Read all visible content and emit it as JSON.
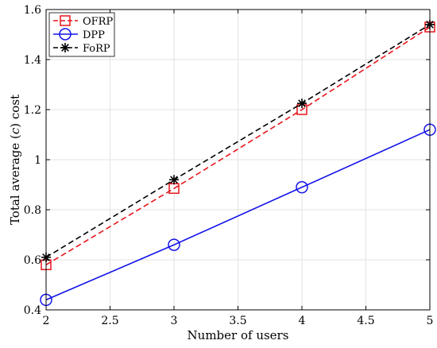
{
  "chart_data": {
    "type": "line",
    "title": "",
    "xlabel": "Number of users",
    "ylabel": "Total average ($\\bar{c}$) cost",
    "ylabel_parts": {
      "before": "Total average (",
      "symbol": "c",
      "after": ") cost"
    },
    "xlim": [
      2,
      5
    ],
    "ylim": [
      0.4,
      1.6
    ],
    "xticks": [
      2,
      2.5,
      3,
      3.5,
      4,
      4.5,
      5
    ],
    "xtick_labels": [
      "2",
      "2.5",
      "3",
      "3.5",
      "4",
      "4.5",
      "5"
    ],
    "yticks": [
      0.4,
      0.6,
      0.8,
      1.0,
      1.2,
      1.4,
      1.6
    ],
    "ytick_labels": [
      "0.4",
      "0.6",
      "0.8",
      "1",
      "1.2",
      "1.4",
      "1.6"
    ],
    "grid": true,
    "legend_position": "top-left",
    "x": [
      2,
      3,
      4,
      5
    ],
    "series": [
      {
        "name": "OFRP",
        "values": [
          0.58,
          0.885,
          1.2,
          1.53
        ],
        "color": "#e8161b",
        "line_style": "dashed",
        "marker": "square"
      },
      {
        "name": "DPP",
        "values": [
          0.44,
          0.66,
          0.89,
          1.12
        ],
        "color": "#1313e8",
        "line_style": "solid",
        "marker": "circle"
      },
      {
        "name": "FoRP",
        "values": [
          0.61,
          0.92,
          1.225,
          1.54
        ],
        "color": "#000000",
        "line_style": "dashed",
        "marker": "asterisk"
      }
    ]
  }
}
